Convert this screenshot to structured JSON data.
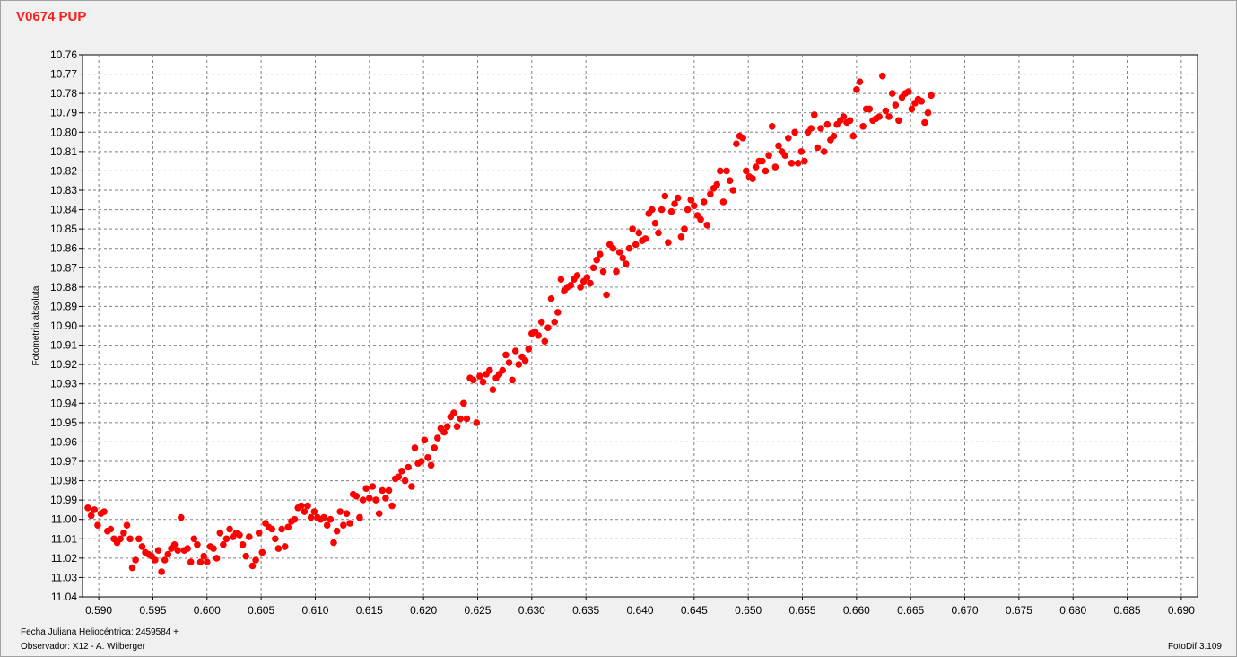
{
  "title": "V0674 PUP",
  "footer": {
    "jd": "Fecha Juliana Heliocéntrica: 2459584 +",
    "observer": "Observador: X12 - A. Wilberger",
    "software": "FotoDif 3.109"
  },
  "colors": {
    "points": "#ff0000",
    "title": "#ff1a1a",
    "plot_bg": "#ffffff",
    "grid": "#808080"
  },
  "chart_data": {
    "type": "scatter",
    "title": "V0674 PUP",
    "xlabel": "",
    "ylabel": "Fotometría absoluta",
    "xlim": [
      0.5885,
      0.6915
    ],
    "ylim": [
      11.04,
      10.76
    ],
    "y_inverted": true,
    "grid": true,
    "xticks": [
      "0.590",
      "0.595",
      "0.600",
      "0.605",
      "0.610",
      "0.615",
      "0.620",
      "0.625",
      "0.630",
      "0.635",
      "0.640",
      "0.645",
      "0.650",
      "0.655",
      "0.660",
      "0.665",
      "0.670",
      "0.675",
      "0.680",
      "0.685",
      "0.690"
    ],
    "yticks": [
      "10.76",
      "10.77",
      "10.78",
      "10.79",
      "10.80",
      "10.81",
      "10.82",
      "10.83",
      "10.84",
      "10.85",
      "10.86",
      "10.87",
      "10.88",
      "10.89",
      "10.90",
      "10.91",
      "10.92",
      "10.93",
      "10.94",
      "10.95",
      "10.96",
      "10.97",
      "10.98",
      "10.99",
      "11.00",
      "11.01",
      "11.02",
      "11.03",
      "11.04"
    ],
    "points": [
      [
        0.589,
        10.994
      ],
      [
        0.5893,
        10.998
      ],
      [
        0.5896,
        10.995
      ],
      [
        0.5899,
        11.003
      ],
      [
        0.5902,
        10.997
      ],
      [
        0.5905,
        10.996
      ],
      [
        0.5908,
        11.006
      ],
      [
        0.5911,
        11.005
      ],
      [
        0.5914,
        11.01
      ],
      [
        0.5917,
        11.012
      ],
      [
        0.592,
        11.01
      ],
      [
        0.5923,
        11.007
      ],
      [
        0.5926,
        11.003
      ],
      [
        0.5929,
        11.01
      ],
      [
        0.5931,
        11.025
      ],
      [
        0.5934,
        11.021
      ],
      [
        0.5937,
        11.01
      ],
      [
        0.594,
        11.014
      ],
      [
        0.5943,
        11.017
      ],
      [
        0.5946,
        11.018
      ],
      [
        0.5949,
        11.019
      ],
      [
        0.5952,
        11.021
      ],
      [
        0.5955,
        11.016
      ],
      [
        0.5958,
        11.027
      ],
      [
        0.5961,
        11.021
      ],
      [
        0.5964,
        11.018
      ],
      [
        0.5967,
        11.015
      ],
      [
        0.597,
        11.013
      ],
      [
        0.5973,
        11.016
      ],
      [
        0.5976,
        10.999
      ],
      [
        0.5979,
        11.016
      ],
      [
        0.5982,
        11.015
      ],
      [
        0.5985,
        11.022
      ],
      [
        0.5988,
        11.01
      ],
      [
        0.5991,
        11.013
      ],
      [
        0.5994,
        11.022
      ],
      [
        0.5997,
        11.019
      ],
      [
        0.6,
        11.022
      ],
      [
        0.6003,
        11.014
      ],
      [
        0.6006,
        11.015
      ],
      [
        0.6009,
        11.02
      ],
      [
        0.6012,
        11.007
      ],
      [
        0.6015,
        11.013
      ],
      [
        0.6018,
        11.01
      ],
      [
        0.6021,
        11.005
      ],
      [
        0.6024,
        11.009
      ],
      [
        0.6027,
        11.007
      ],
      [
        0.603,
        11.008
      ],
      [
        0.6033,
        11.013
      ],
      [
        0.6036,
        11.019
      ],
      [
        0.6039,
        11.009
      ],
      [
        0.6042,
        11.024
      ],
      [
        0.6045,
        11.021
      ],
      [
        0.6048,
        11.007
      ],
      [
        0.6051,
        11.017
      ],
      [
        0.6054,
        11.002
      ],
      [
        0.6057,
        11.004
      ],
      [
        0.606,
        11.005
      ],
      [
        0.6063,
        11.01
      ],
      [
        0.6066,
        11.015
      ],
      [
        0.6069,
        11.005
      ],
      [
        0.6072,
        11.014
      ],
      [
        0.6075,
        11.004
      ],
      [
        0.6078,
        11.001
      ],
      [
        0.6081,
        11.0
      ],
      [
        0.6084,
        10.994
      ],
      [
        0.6087,
        10.993
      ],
      [
        0.609,
        10.996
      ],
      [
        0.6093,
        10.993
      ],
      [
        0.6096,
        10.999
      ],
      [
        0.6099,
        10.996
      ],
      [
        0.6102,
        10.999
      ],
      [
        0.6105,
        11.0
      ],
      [
        0.6108,
        10.999
      ],
      [
        0.6111,
        11.003
      ],
      [
        0.6114,
        11.0
      ],
      [
        0.6117,
        11.012
      ],
      [
        0.612,
        11.006
      ],
      [
        0.6123,
        10.996
      ],
      [
        0.6126,
        11.003
      ],
      [
        0.6129,
        10.997
      ],
      [
        0.6132,
        11.002
      ],
      [
        0.6135,
        10.987
      ],
      [
        0.6138,
        10.988
      ],
      [
        0.6141,
        10.999
      ],
      [
        0.6144,
        10.99
      ],
      [
        0.6147,
        10.984
      ],
      [
        0.615,
        10.989
      ],
      [
        0.6153,
        10.983
      ],
      [
        0.6156,
        10.99
      ],
      [
        0.6159,
        10.997
      ],
      [
        0.6162,
        10.985
      ],
      [
        0.6165,
        10.989
      ],
      [
        0.6168,
        10.985
      ],
      [
        0.6171,
        10.993
      ],
      [
        0.6174,
        10.979
      ],
      [
        0.6177,
        10.978
      ],
      [
        0.618,
        10.975
      ],
      [
        0.6183,
        10.98
      ],
      [
        0.6186,
        10.973
      ],
      [
        0.6189,
        10.983
      ],
      [
        0.6192,
        10.963
      ],
      [
        0.6195,
        10.971
      ],
      [
        0.6198,
        10.97
      ],
      [
        0.6201,
        10.959
      ],
      [
        0.6204,
        10.968
      ],
      [
        0.6207,
        10.972
      ],
      [
        0.621,
        10.963
      ],
      [
        0.6213,
        10.958
      ],
      [
        0.6216,
        10.953
      ],
      [
        0.6219,
        10.955
      ],
      [
        0.6222,
        10.952
      ],
      [
        0.6225,
        10.947
      ],
      [
        0.6228,
        10.945
      ],
      [
        0.6231,
        10.952
      ],
      [
        0.6234,
        10.948
      ],
      [
        0.6237,
        10.94
      ],
      [
        0.624,
        10.948
      ],
      [
        0.6243,
        10.927
      ],
      [
        0.6246,
        10.928
      ],
      [
        0.6249,
        10.95
      ],
      [
        0.6252,
        10.926
      ],
      [
        0.6255,
        10.929
      ],
      [
        0.6258,
        10.925
      ],
      [
        0.6261,
        10.923
      ],
      [
        0.6264,
        10.933
      ],
      [
        0.6267,
        10.927
      ],
      [
        0.627,
        10.925
      ],
      [
        0.6273,
        10.923
      ],
      [
        0.6276,
        10.915
      ],
      [
        0.6279,
        10.919
      ],
      [
        0.6282,
        10.928
      ],
      [
        0.6285,
        10.913
      ],
      [
        0.6288,
        10.92
      ],
      [
        0.6291,
        10.916
      ],
      [
        0.6294,
        10.918
      ],
      [
        0.6297,
        10.912
      ],
      [
        0.63,
        10.904
      ],
      [
        0.6303,
        10.903
      ],
      [
        0.6306,
        10.905
      ],
      [
        0.6309,
        10.898
      ],
      [
        0.6312,
        10.908
      ],
      [
        0.6315,
        10.901
      ],
      [
        0.6318,
        10.886
      ],
      [
        0.6321,
        10.898
      ],
      [
        0.6324,
        10.893
      ],
      [
        0.6327,
        10.876
      ],
      [
        0.633,
        10.882
      ],
      [
        0.6333,
        10.88
      ],
      [
        0.6336,
        10.879
      ],
      [
        0.6339,
        10.876
      ],
      [
        0.6342,
        10.874
      ],
      [
        0.6345,
        10.88
      ],
      [
        0.6348,
        10.877
      ],
      [
        0.6351,
        10.875
      ],
      [
        0.6354,
        10.878
      ],
      [
        0.6357,
        10.87
      ],
      [
        0.636,
        10.866
      ],
      [
        0.6363,
        10.863
      ],
      [
        0.6366,
        10.872
      ],
      [
        0.6369,
        10.884
      ],
      [
        0.6372,
        10.858
      ],
      [
        0.6375,
        10.86
      ],
      [
        0.6378,
        10.872
      ],
      [
        0.6381,
        10.862
      ],
      [
        0.6384,
        10.865
      ],
      [
        0.6387,
        10.868
      ],
      [
        0.639,
        10.86
      ],
      [
        0.6393,
        10.85
      ],
      [
        0.6396,
        10.858
      ],
      [
        0.6399,
        10.852
      ],
      [
        0.6402,
        10.856
      ],
      [
        0.6405,
        10.855
      ],
      [
        0.6408,
        10.842
      ],
      [
        0.6411,
        10.84
      ],
      [
        0.6414,
        10.847
      ],
      [
        0.6417,
        10.852
      ],
      [
        0.642,
        10.84
      ],
      [
        0.6423,
        10.833
      ],
      [
        0.6426,
        10.857
      ],
      [
        0.6429,
        10.841
      ],
      [
        0.6432,
        10.837
      ],
      [
        0.6435,
        10.834
      ],
      [
        0.6438,
        10.854
      ],
      [
        0.6441,
        10.85
      ],
      [
        0.6444,
        10.84
      ],
      [
        0.6447,
        10.835
      ],
      [
        0.645,
        10.838
      ],
      [
        0.6453,
        10.843
      ],
      [
        0.6456,
        10.845
      ],
      [
        0.6459,
        10.836
      ],
      [
        0.6462,
        10.848
      ],
      [
        0.6465,
        10.832
      ],
      [
        0.6468,
        10.829
      ],
      [
        0.6471,
        10.827
      ],
      [
        0.6474,
        10.82
      ],
      [
        0.6477,
        10.836
      ],
      [
        0.648,
        10.82
      ],
      [
        0.6483,
        10.825
      ],
      [
        0.6486,
        10.83
      ],
      [
        0.6489,
        10.806
      ],
      [
        0.6492,
        10.802
      ],
      [
        0.6495,
        10.803
      ],
      [
        0.6498,
        10.82
      ],
      [
        0.6501,
        10.823
      ],
      [
        0.6504,
        10.824
      ],
      [
        0.6507,
        10.818
      ],
      [
        0.651,
        10.815
      ],
      [
        0.6513,
        10.815
      ],
      [
        0.6516,
        10.82
      ],
      [
        0.6519,
        10.812
      ],
      [
        0.6522,
        10.797
      ],
      [
        0.6525,
        10.818
      ],
      [
        0.6528,
        10.807
      ],
      [
        0.6531,
        10.81
      ],
      [
        0.6534,
        10.812
      ],
      [
        0.6537,
        10.803
      ],
      [
        0.654,
        10.816
      ],
      [
        0.6543,
        10.8
      ],
      [
        0.6546,
        10.816
      ],
      [
        0.6549,
        10.81
      ],
      [
        0.6552,
        10.815
      ],
      [
        0.6555,
        10.8
      ],
      [
        0.6558,
        10.798
      ],
      [
        0.6561,
        10.791
      ],
      [
        0.6564,
        10.808
      ],
      [
        0.6567,
        10.798
      ],
      [
        0.657,
        10.81
      ],
      [
        0.6573,
        10.796
      ],
      [
        0.6576,
        10.804
      ],
      [
        0.6579,
        10.802
      ],
      [
        0.6582,
        10.796
      ],
      [
        0.6585,
        10.794
      ],
      [
        0.6588,
        10.792
      ],
      [
        0.6591,
        10.795
      ],
      [
        0.6594,
        10.794
      ],
      [
        0.6597,
        10.802
      ],
      [
        0.66,
        10.778
      ],
      [
        0.6603,
        10.774
      ],
      [
        0.6606,
        10.797
      ],
      [
        0.6609,
        10.788
      ],
      [
        0.6612,
        10.788
      ],
      [
        0.6615,
        10.794
      ],
      [
        0.6618,
        10.793
      ],
      [
        0.6621,
        10.792
      ],
      [
        0.6624,
        10.771
      ],
      [
        0.6627,
        10.789
      ],
      [
        0.663,
        10.792
      ],
      [
        0.6633,
        10.78
      ],
      [
        0.6636,
        10.786
      ],
      [
        0.6639,
        10.794
      ],
      [
        0.6642,
        10.782
      ],
      [
        0.6645,
        10.78
      ],
      [
        0.6648,
        10.779
      ],
      [
        0.6651,
        10.788
      ],
      [
        0.6654,
        10.785
      ],
      [
        0.6657,
        10.783
      ],
      [
        0.666,
        10.784
      ],
      [
        0.6663,
        10.795
      ],
      [
        0.6666,
        10.79
      ],
      [
        0.6669,
        10.781
      ]
    ]
  }
}
